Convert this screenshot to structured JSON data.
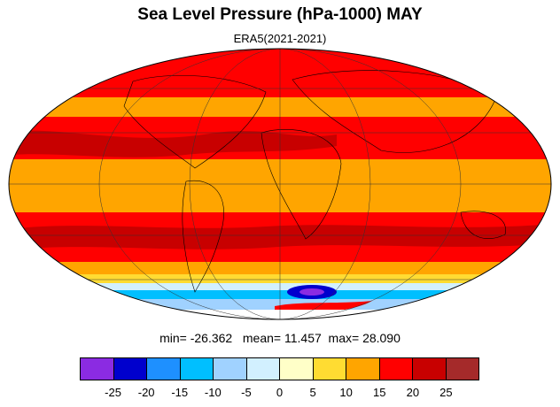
{
  "title": "Sea Level Pressure (hPa-1000) MAY",
  "subtitle": "ERA5(2021-2021)",
  "stats": {
    "min_label": "min=",
    "min": "-26.362",
    "mean_label": "mean=",
    "mean": "11.457",
    "max_label": "max=",
    "max": "28.090"
  },
  "colorbar": {
    "colors": [
      "#8b2be2",
      "#0000cd",
      "#1e90ff",
      "#00bfff",
      "#a0d2ff",
      "#d2f0ff",
      "#ffffc8",
      "#ffdc32",
      "#ffa500",
      "#ff0000",
      "#c80000",
      "#a52a2a"
    ],
    "tick_labels": [
      "-25",
      "-20",
      "-15",
      "-10",
      "-5",
      "0",
      "5",
      "10",
      "15",
      "20",
      "25"
    ]
  },
  "map": {
    "projection": "mollweide",
    "field": "sea level pressure anomaly",
    "units": "hPa-1000"
  }
}
